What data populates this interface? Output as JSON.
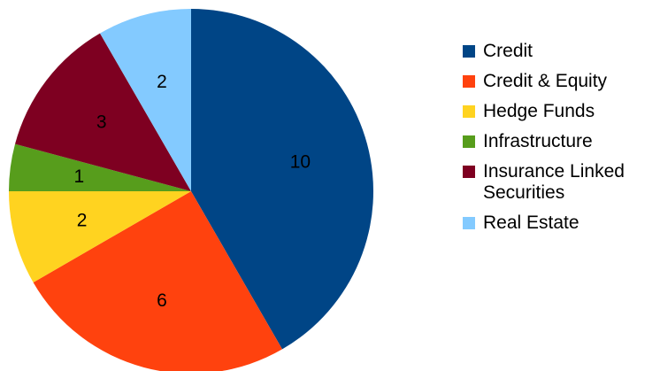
{
  "chart_data": {
    "type": "pie",
    "categories": [
      "Credit",
      "Credit & Equity",
      "Hedge Funds",
      "Infrastructure",
      "Insurance Linked Securities",
      "Real Estate"
    ],
    "values": [
      10,
      6,
      2,
      1,
      3,
      2
    ],
    "colors": [
      "#004586",
      "#ff420e",
      "#ffd320",
      "#579d1c",
      "#7e0021",
      "#83caff"
    ],
    "title": "",
    "legend_position": "right",
    "start_angle": "top, clockwise"
  },
  "legend": {
    "items": [
      {
        "label": "Credit",
        "color": "#004586"
      },
      {
        "label": "Credit & Equity",
        "color": "#ff420e"
      },
      {
        "label": "Hedge Funds",
        "color": "#ffd320"
      },
      {
        "label": "Infrastructure",
        "color": "#579d1c"
      },
      {
        "label": "Insurance Linked Securities",
        "color": "#7e0021"
      },
      {
        "label": "Real Estate",
        "color": "#83caff"
      }
    ]
  }
}
